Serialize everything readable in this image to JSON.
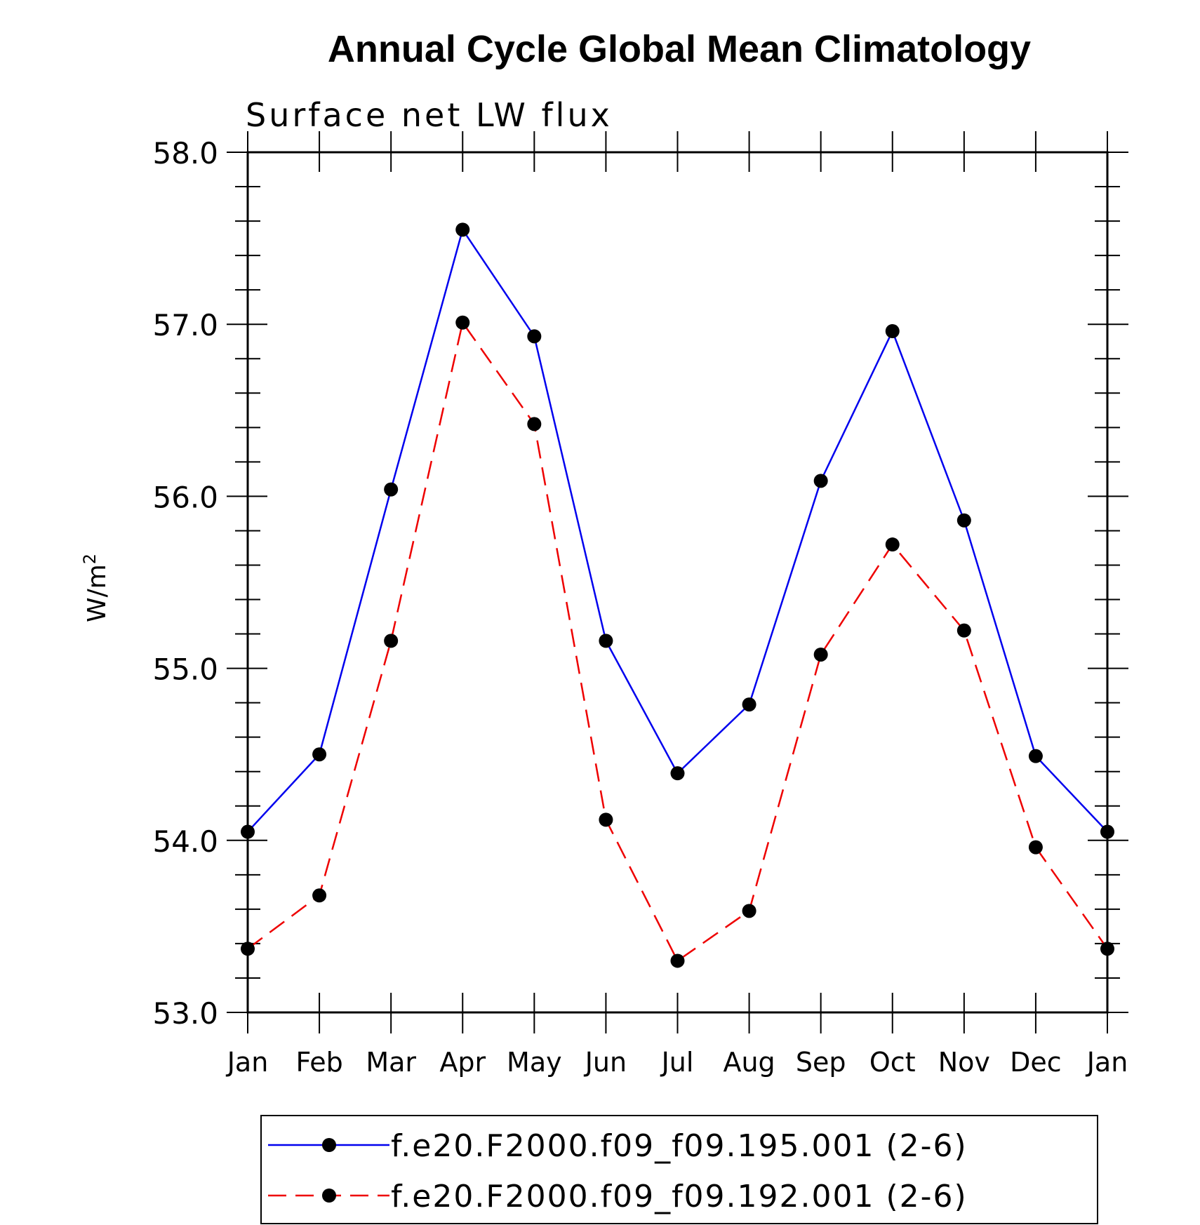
{
  "chart_data": {
    "type": "line",
    "title": "Annual Cycle Global Mean Climatology",
    "subtitle": "Surface net LW flux",
    "ylabel": "W/m",
    "ylabel_superscript": "2",
    "xlabel": "",
    "categories": [
      "Jan",
      "Feb",
      "Mar",
      "Apr",
      "May",
      "Jun",
      "Jul",
      "Aug",
      "Sep",
      "Oct",
      "Nov",
      "Dec",
      "Jan"
    ],
    "ylim": [
      53.0,
      58.0
    ],
    "yticks": [
      "53.0",
      "54.0",
      "55.0",
      "56.0",
      "57.0",
      "58.0"
    ],
    "grid": false,
    "legend_position": "bottom",
    "series": [
      {
        "name": "f.e20.F2000.f09_f09.195.001 (2-6)",
        "color": "#0000ee",
        "dash": "solid",
        "values": [
          54.05,
          54.5,
          56.04,
          57.55,
          56.93,
          55.16,
          54.39,
          54.79,
          56.09,
          56.96,
          55.86,
          54.49,
          54.05
        ]
      },
      {
        "name": "f.e20.F2000.f09_f09.192.001 (2-6)",
        "color": "#ee0000",
        "dash": "dashed",
        "values": [
          53.37,
          53.68,
          55.16,
          57.01,
          56.42,
          54.12,
          53.3,
          53.59,
          55.08,
          55.72,
          55.22,
          53.96,
          53.37
        ]
      }
    ]
  }
}
